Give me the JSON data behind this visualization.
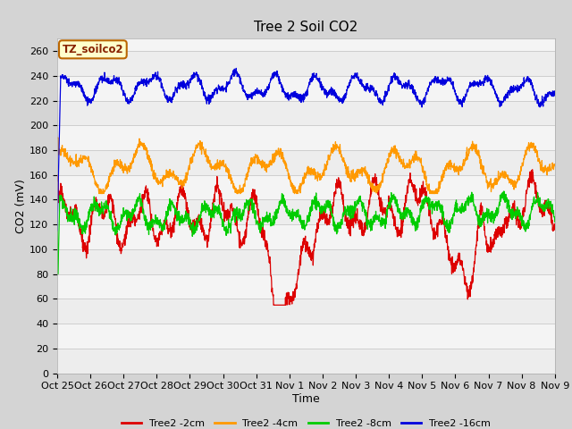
{
  "title": "Tree 2 Soil CO2",
  "xlabel": "Time",
  "ylabel": "CO2 (mV)",
  "ylim": [
    0,
    270
  ],
  "yticks": [
    0,
    20,
    40,
    60,
    80,
    100,
    120,
    140,
    160,
    180,
    200,
    220,
    240,
    260
  ],
  "xtick_labels": [
    "Oct 25",
    "Oct 26",
    "Oct 27",
    "Oct 28",
    "Oct 29",
    "Oct 30",
    "Oct 31",
    "Nov 1",
    "Nov 2",
    "Nov 3",
    "Nov 4",
    "Nov 5",
    "Nov 6",
    "Nov 7",
    "Nov 8",
    "Nov 9"
  ],
  "legend_label": "TZ_soilco2",
  "legend_box_facecolor": "#ffffcc",
  "legend_box_edgecolor": "#bb6600",
  "legend_text_color": "#882200",
  "series_colors": {
    "2cm": "#dd0000",
    "4cm": "#ff9900",
    "8cm": "#00cc00",
    "16cm": "#0000dd"
  },
  "series_labels": [
    "Tree2 -2cm",
    "Tree2 -4cm",
    "Tree2 -8cm",
    "Tree2 -16cm"
  ],
  "fig_facecolor": "#d4d4d4",
  "plot_facecolor": "#f4f4f4",
  "title_fontsize": 11,
  "axis_label_fontsize": 9,
  "tick_fontsize": 8,
  "n_days": 15,
  "n_points": 2000
}
